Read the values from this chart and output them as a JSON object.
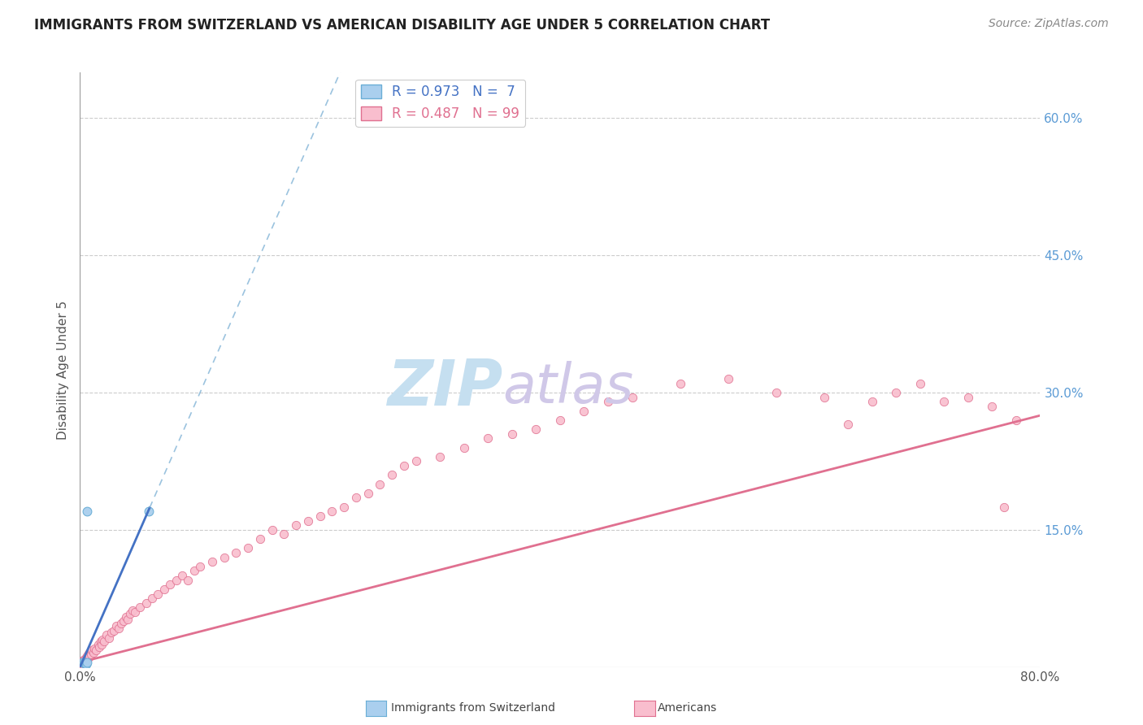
{
  "title": "IMMIGRANTS FROM SWITZERLAND VS AMERICAN DISABILITY AGE UNDER 5 CORRELATION CHART",
  "source": "Source: ZipAtlas.com",
  "ylabel": "Disability Age Under 5",
  "xmin": 0.0,
  "xmax": 0.8,
  "ymin": 0.0,
  "ymax": 0.65,
  "yticks": [
    0.0,
    0.15,
    0.3,
    0.45,
    0.6
  ],
  "ytick_labels": [
    "",
    "15.0%",
    "30.0%",
    "45.0%",
    "60.0%"
  ],
  "swiss_color": "#aacfee",
  "swiss_edge_color": "#6aaed6",
  "swiss_line_solid_color": "#4472c4",
  "swiss_line_dash_color": "#7aafd4",
  "american_color": "#f9bece",
  "american_edge_color": "#e07090",
  "american_line_color": "#e07090",
  "legend_swiss_R": "0.973",
  "legend_swiss_N": "7",
  "legend_american_R": "0.487",
  "legend_american_N": "99",
  "swiss_x": [
    0.002,
    0.003,
    0.004,
    0.005,
    0.006,
    0.006,
    0.057
  ],
  "swiss_y": [
    0.005,
    0.005,
    0.004,
    0.003,
    0.005,
    0.17,
    0.17
  ],
  "am_x": [
    0.001,
    0.001,
    0.001,
    0.001,
    0.002,
    0.002,
    0.002,
    0.002,
    0.002,
    0.003,
    0.003,
    0.003,
    0.003,
    0.004,
    0.004,
    0.004,
    0.005,
    0.005,
    0.005,
    0.006,
    0.006,
    0.007,
    0.007,
    0.008,
    0.009,
    0.01,
    0.011,
    0.012,
    0.013,
    0.015,
    0.016,
    0.017,
    0.018,
    0.019,
    0.02,
    0.022,
    0.024,
    0.026,
    0.028,
    0.03,
    0.032,
    0.034,
    0.036,
    0.038,
    0.04,
    0.042,
    0.044,
    0.046,
    0.05,
    0.055,
    0.06,
    0.065,
    0.07,
    0.075,
    0.08,
    0.085,
    0.09,
    0.095,
    0.1,
    0.11,
    0.12,
    0.13,
    0.14,
    0.15,
    0.16,
    0.17,
    0.18,
    0.19,
    0.2,
    0.21,
    0.22,
    0.23,
    0.24,
    0.25,
    0.26,
    0.27,
    0.28,
    0.3,
    0.32,
    0.34,
    0.36,
    0.38,
    0.4,
    0.42,
    0.44,
    0.46,
    0.5,
    0.54,
    0.58,
    0.62,
    0.64,
    0.66,
    0.68,
    0.7,
    0.72,
    0.74,
    0.76,
    0.77,
    0.78
  ],
  "am_y": [
    0.005,
    0.006,
    0.003,
    0.004,
    0.006,
    0.004,
    0.005,
    0.007,
    0.003,
    0.008,
    0.005,
    0.007,
    0.004,
    0.009,
    0.006,
    0.005,
    0.01,
    0.008,
    0.006,
    0.012,
    0.008,
    0.015,
    0.01,
    0.012,
    0.014,
    0.018,
    0.016,
    0.02,
    0.018,
    0.025,
    0.022,
    0.028,
    0.025,
    0.03,
    0.028,
    0.035,
    0.032,
    0.038,
    0.04,
    0.045,
    0.042,
    0.048,
    0.05,
    0.055,
    0.052,
    0.058,
    0.062,
    0.06,
    0.065,
    0.07,
    0.075,
    0.08,
    0.085,
    0.09,
    0.095,
    0.1,
    0.095,
    0.105,
    0.11,
    0.115,
    0.12,
    0.125,
    0.13,
    0.14,
    0.15,
    0.145,
    0.155,
    0.16,
    0.165,
    0.17,
    0.175,
    0.185,
    0.19,
    0.2,
    0.21,
    0.22,
    0.225,
    0.23,
    0.24,
    0.25,
    0.255,
    0.26,
    0.27,
    0.28,
    0.29,
    0.295,
    0.31,
    0.315,
    0.3,
    0.295,
    0.265,
    0.29,
    0.3,
    0.31,
    0.29,
    0.295,
    0.285,
    0.175,
    0.27
  ],
  "am_line_x0": 0.0,
  "am_line_x1": 0.8,
  "am_line_y0": 0.005,
  "am_line_y1": 0.275,
  "sw_line_solid_x0": 0.0,
  "sw_line_solid_x1": 0.058,
  "sw_line_dash_x0": 0.058,
  "sw_line_dash_x1": 0.34,
  "sw_line_slope": 3.0,
  "sw_line_intercept": 0.0,
  "background_color": "#ffffff",
  "grid_color": "#cccccc",
  "watermark_zip_color": "#c5dff0",
  "watermark_atlas_color": "#d0c8e8",
  "title_fontsize": 12,
  "source_fontsize": 10,
  "label_fontsize": 11,
  "tick_fontsize": 11,
  "legend_fontsize": 12,
  "right_tick_color": "#5b9bd5"
}
